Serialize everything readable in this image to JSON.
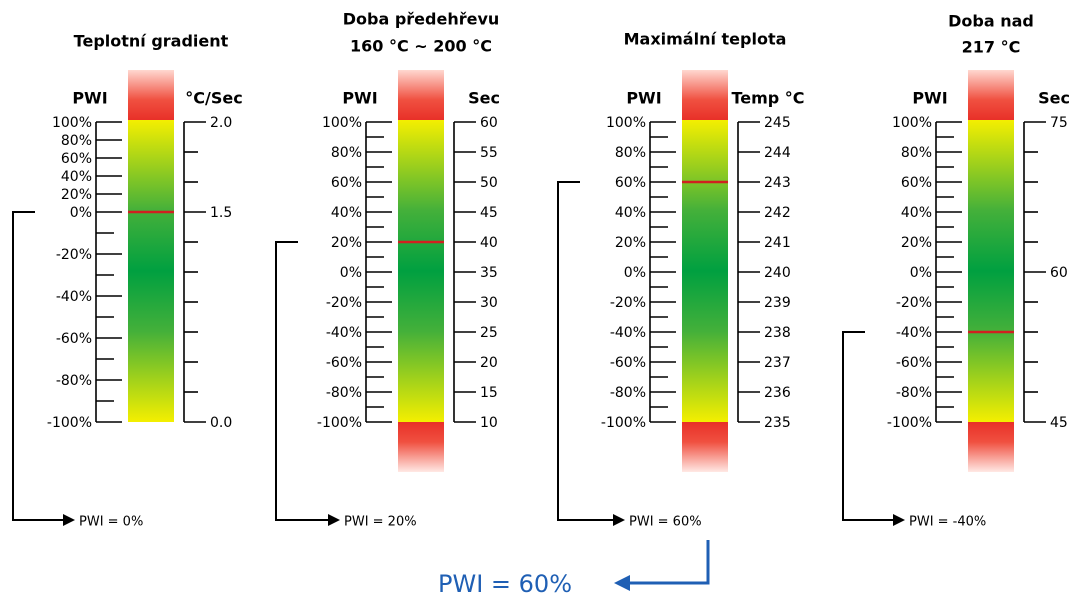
{
  "gauges": [
    {
      "title": [
        "Teplotní gradient"
      ],
      "left_header": "PWI",
      "right_header": "°C/Sec",
      "left_labels": [
        "100%",
        "80%",
        "60%",
        "40%",
        "20%",
        "0%",
        "-20%",
        "-40%",
        "-60%",
        "-80%",
        "-100%"
      ],
      "right_labels": [
        "2.0",
        "1.5",
        "0.0"
      ],
      "result": "PWI = 0%"
    },
    {
      "title": [
        "Doba předehřevu",
        "160 °C ~ 200 °C"
      ],
      "left_header": "PWI",
      "right_header": "Sec",
      "left_labels": [
        "100%",
        "80%",
        "60%",
        "40%",
        "20%",
        "0%",
        "-20%",
        "-40%",
        "-60%",
        "-80%",
        "-100%"
      ],
      "right_labels": [
        "60",
        "55",
        "50",
        "45",
        "40",
        "35",
        "30",
        "25",
        "20",
        "15",
        "10"
      ],
      "result": "PWI = 20%"
    },
    {
      "title": [
        "Maximální teplota"
      ],
      "left_header": "PWI",
      "right_header": "Temp °C",
      "left_labels": [
        "100%",
        "80%",
        "60%",
        "40%",
        "20%",
        "0%",
        "-20%",
        "-40%",
        "-60%",
        "-80%",
        "-100%"
      ],
      "right_labels": [
        "245",
        "244",
        "243",
        "242",
        "241",
        "240",
        "239",
        "238",
        "237",
        "236",
        "235"
      ],
      "result": "PWI = 60%"
    },
    {
      "title": [
        "Doba nad",
        "217 °C"
      ],
      "left_header": "PWI",
      "right_header": "Sec",
      "left_labels": [
        "100%",
        "80%",
        "60%",
        "40%",
        "20%",
        "0%",
        "-20%",
        "-40%",
        "-60%",
        "-80%",
        "-100%"
      ],
      "right_labels": [
        "75",
        "60",
        "45"
      ],
      "result": "PWI = -40%"
    }
  ],
  "summary": "PWI = 60%"
}
